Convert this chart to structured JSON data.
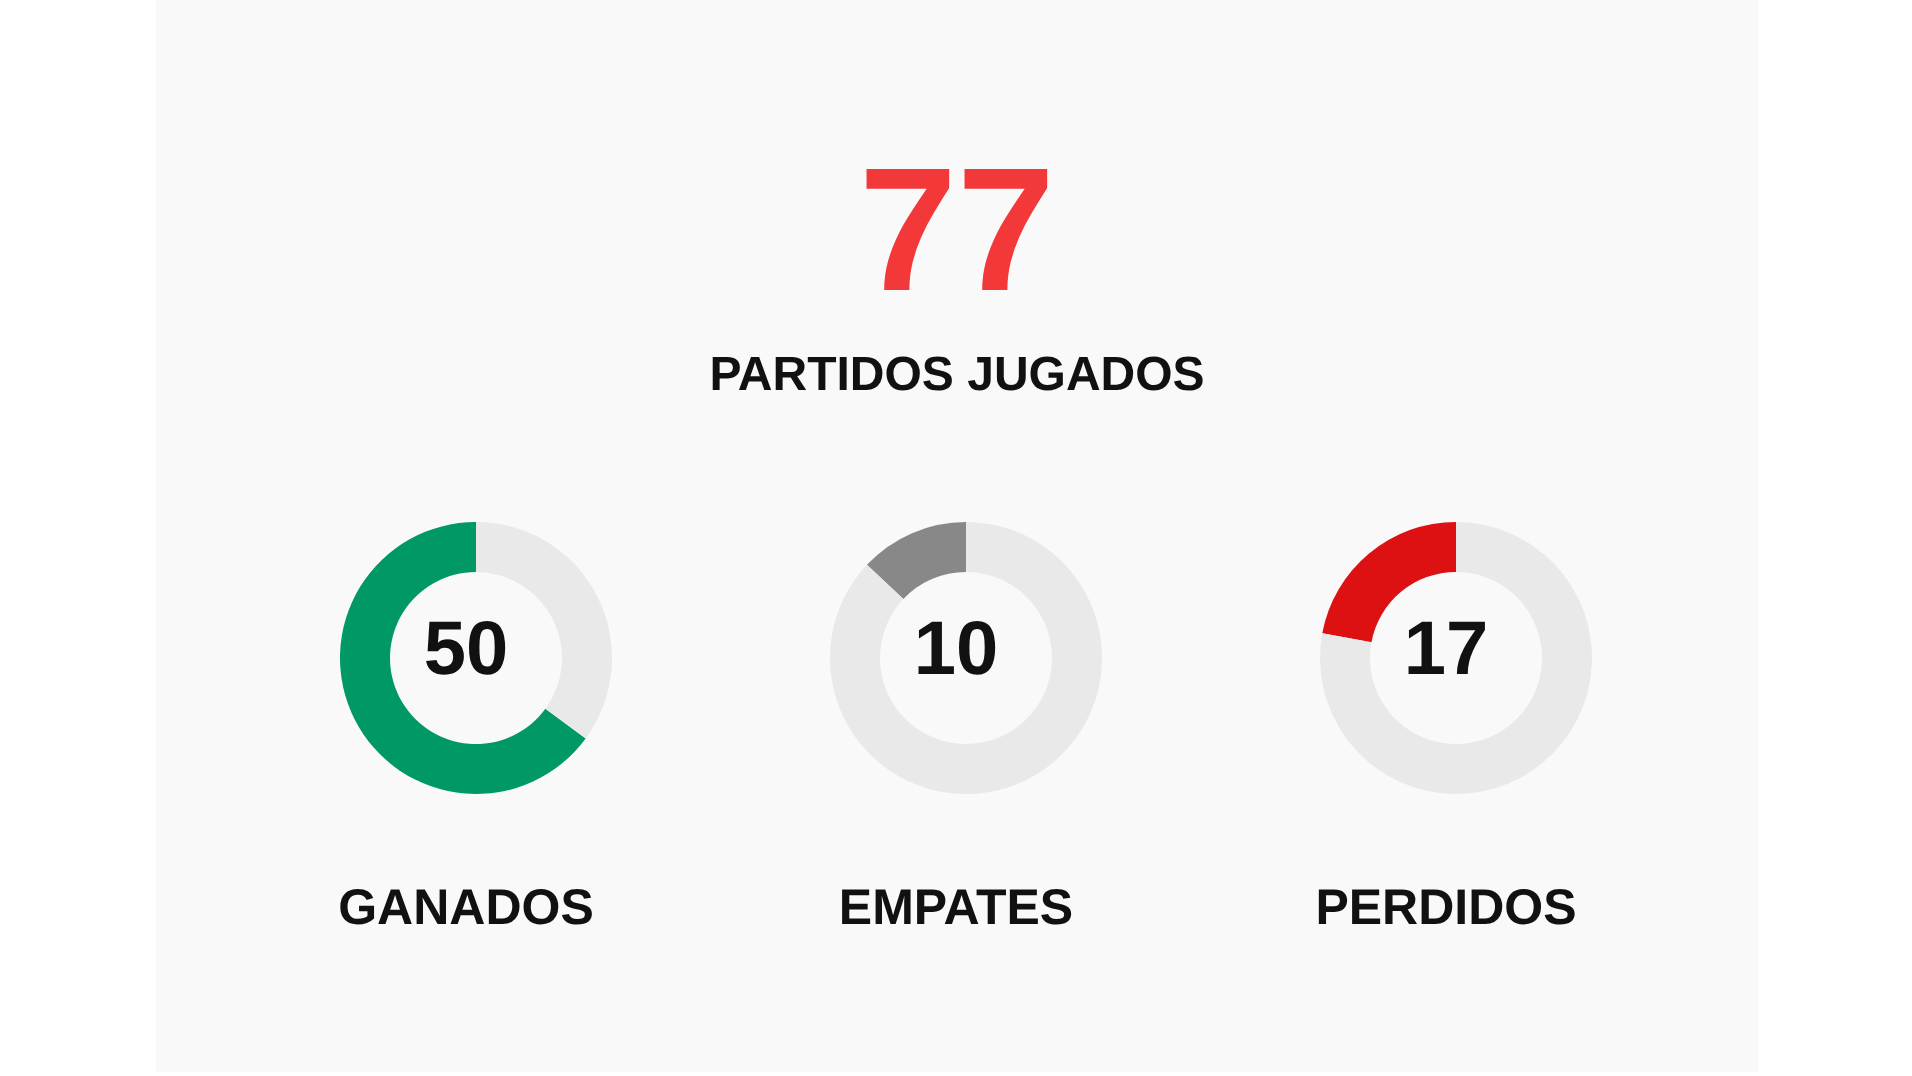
{
  "chart_data": [
    {
      "type": "other",
      "title": "77",
      "subtitle": "PARTIDOS JUGADOS"
    },
    {
      "type": "donut",
      "title": "GANADOS",
      "categories": [
        null,
        null
      ],
      "values": [
        50,
        27
      ],
      "colors": [
        "#009966",
        "#e9e9e9"
      ],
      "value_labels": [
        "50",
        null
      ]
    },
    {
      "type": "donut",
      "title": "EMPATES",
      "categories": [
        null,
        null
      ],
      "values": [
        10,
        67
      ],
      "colors": [
        "#888888",
        "#e9e9e9"
      ],
      "value_labels": [
        "10",
        null
      ]
    },
    {
      "type": "donut",
      "title": "PERDIDOS",
      "categories": [
        null,
        null
      ],
      "values": [
        17,
        60
      ],
      "colors": [
        "#dd1111",
        "#e9e9e9"
      ],
      "value_labels": [
        "17",
        null
      ]
    }
  ]
}
